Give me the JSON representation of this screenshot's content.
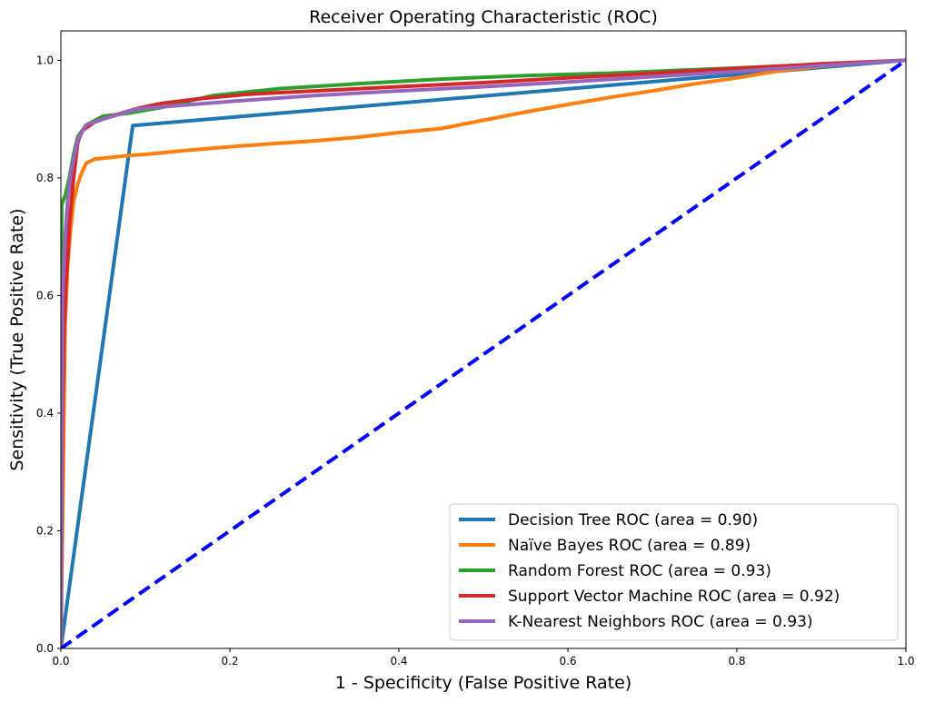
{
  "chart_data": {
    "type": "line",
    "title": "Receiver Operating Characteristic (ROC)",
    "xlabel": "1 - Specificity (False Positive Rate)",
    "ylabel": "Sensitivity (True Positive Rate)",
    "xlim": [
      0.0,
      1.0
    ],
    "ylim": [
      0.0,
      1.05
    ],
    "xticks": [
      "0.0",
      "0.2",
      "0.4",
      "0.6",
      "0.8",
      "1.0"
    ],
    "yticks": [
      "0.0",
      "0.2",
      "0.4",
      "0.6",
      "0.8",
      "1.0"
    ],
    "grid": false,
    "legend_position": "lower-right",
    "series": [
      {
        "name": "Decision Tree ROC (area = 0.90)",
        "color": "#1f77b4",
        "x": [
          0.0,
          0.085,
          1.0
        ],
        "y": [
          0.0,
          0.889,
          1.0
        ]
      },
      {
        "name": "Naïve Bayes ROC (area = 0.89)",
        "color": "#ff7f0e",
        "x": [
          0.0,
          0.005,
          0.008,
          0.012,
          0.015,
          0.02,
          0.025,
          0.03,
          0.04,
          0.06,
          0.08,
          0.1,
          0.15,
          0.2,
          0.25,
          0.3,
          0.35,
          0.4,
          0.45,
          0.5,
          0.55,
          0.6,
          0.65,
          0.7,
          0.75,
          0.8,
          0.85,
          0.9,
          0.95,
          1.0
        ],
        "y": [
          0.0,
          0.55,
          0.65,
          0.72,
          0.76,
          0.79,
          0.81,
          0.825,
          0.832,
          0.835,
          0.838,
          0.84,
          0.847,
          0.853,
          0.858,
          0.863,
          0.869,
          0.877,
          0.884,
          0.898,
          0.912,
          0.925,
          0.937,
          0.948,
          0.96,
          0.97,
          0.982,
          0.99,
          0.996,
          1.0
        ]
      },
      {
        "name": "Random Forest ROC (area = 0.93)",
        "color": "#2ca02c",
        "x": [
          0.0,
          0.001,
          0.005,
          0.01,
          0.015,
          0.02,
          0.03,
          0.05,
          0.08,
          0.12,
          0.18,
          0.26,
          0.35,
          0.45,
          0.55,
          0.65,
          0.75,
          0.85,
          0.95,
          1.0
        ],
        "y": [
          0.0,
          0.755,
          0.77,
          0.8,
          0.84,
          0.87,
          0.89,
          0.905,
          0.91,
          0.92,
          0.94,
          0.952,
          0.96,
          0.968,
          0.974,
          0.978,
          0.984,
          0.99,
          0.996,
          1.0
        ]
      },
      {
        "name": "Support Vector Machine ROC (area = 0.92)",
        "color": "#d62728",
        "x": [
          0.0,
          0.002,
          0.004,
          0.006,
          0.008,
          0.01,
          0.015,
          0.02,
          0.025,
          0.03,
          0.04,
          0.06,
          0.09,
          0.12,
          0.16,
          0.22,
          0.3,
          0.4,
          0.5,
          0.6,
          0.7,
          0.8,
          0.9,
          1.0
        ],
        "y": [
          0.0,
          0.4,
          0.55,
          0.62,
          0.66,
          0.72,
          0.8,
          0.86,
          0.88,
          0.885,
          0.895,
          0.905,
          0.918,
          0.927,
          0.934,
          0.942,
          0.948,
          0.955,
          0.962,
          0.97,
          0.978,
          0.986,
          0.994,
          1.0
        ]
      },
      {
        "name": "K-Nearest Neighbors ROC (area = 0.93)",
        "color": "#9467bd",
        "x": [
          0.0,
          0.002,
          0.005,
          0.008,
          0.012,
          0.02,
          0.03,
          0.05,
          0.09,
          0.13,
          0.2,
          0.3,
          0.4,
          0.5,
          0.6,
          0.7,
          0.8,
          0.9,
          1.0
        ],
        "y": [
          0.0,
          0.6,
          0.7,
          0.76,
          0.81,
          0.865,
          0.89,
          0.9,
          0.917,
          0.922,
          0.93,
          0.94,
          0.948,
          0.955,
          0.963,
          0.972,
          0.981,
          0.991,
          1.0
        ]
      },
      {
        "name": "",
        "color": "#0000ff",
        "dashed": true,
        "x": [
          0.0,
          1.0
        ],
        "y": [
          0.0,
          1.0
        ]
      }
    ]
  }
}
